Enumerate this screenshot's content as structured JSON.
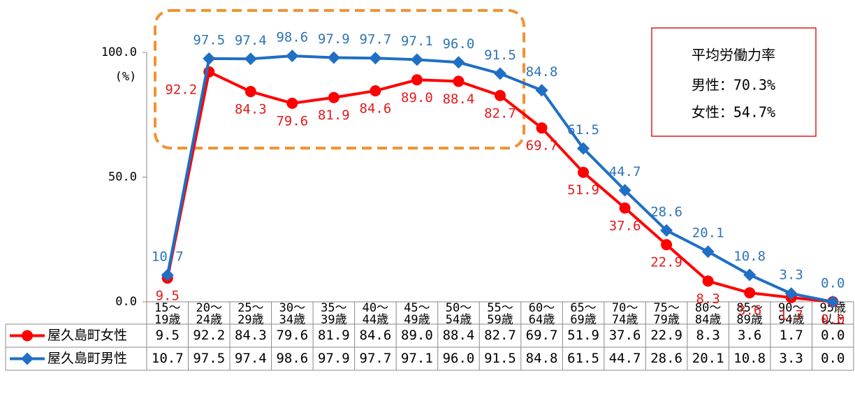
{
  "chart_data": {
    "type": "line",
    "categories": [
      [
        "15～",
        "19歳"
      ],
      [
        "20～",
        "24歳"
      ],
      [
        "25～",
        "29歳"
      ],
      [
        "30～",
        "34歳"
      ],
      [
        "35～",
        "39歳"
      ],
      [
        "40～",
        "44歳"
      ],
      [
        "45～",
        "49歳"
      ],
      [
        "50～",
        "54歳"
      ],
      [
        "55～",
        "59歳"
      ],
      [
        "60～",
        "64歳"
      ],
      [
        "65～",
        "69歳"
      ],
      [
        "70～",
        "74歳"
      ],
      [
        "75～",
        "79歳"
      ],
      [
        "80～",
        "84歳"
      ],
      [
        "85～",
        "89歳"
      ],
      [
        "90～",
        "94歳"
      ],
      [
        "95歳",
        "以上"
      ]
    ],
    "series": [
      {
        "name": "屋久島町女性",
        "color": "#ff0000",
        "label_color": "#e31a1c",
        "marker": "circle",
        "values": [
          9.5,
          92.2,
          84.3,
          79.6,
          81.9,
          84.6,
          89.0,
          88.4,
          82.7,
          69.7,
          51.9,
          37.6,
          22.9,
          8.3,
          3.6,
          1.7,
          0
        ],
        "value_labels": [
          "9.5",
          "92.2",
          "84.3",
          "79.6",
          "81.9",
          "84.6",
          "89.0",
          "88.4",
          "82.7",
          "69.7",
          "51.9",
          "37.6",
          "22.9",
          "8.3",
          "3.6",
          "1.7",
          "0.0"
        ]
      },
      {
        "name": "屋久島町男性",
        "color": "#1f6fc5",
        "label_color": "#2e75b6",
        "marker": "diamond",
        "values": [
          10.7,
          97.5,
          97.4,
          98.6,
          97.9,
          97.7,
          97.1,
          96.0,
          91.5,
          84.8,
          61.5,
          44.7,
          28.6,
          20.1,
          10.8,
          3.3,
          0
        ],
        "value_labels": [
          "10.7",
          "97.5",
          "97.4",
          "98.6",
          "97.9",
          "97.7",
          "97.1",
          "96.0",
          "91.5",
          "84.8",
          "61.5",
          "44.7",
          "28.6",
          "20.1",
          "10.8",
          "3.3",
          "0.0"
        ]
      }
    ],
    "ylim": [
      0,
      120
    ],
    "yticks": [
      {
        "value": 0,
        "label": "0.0"
      },
      {
        "value": 50,
        "label": "50.0"
      },
      {
        "value": 100,
        "label": "100.0"
      }
    ],
    "y_unit": "(%)",
    "annotation": {
      "title": "平均労働力率",
      "lines": [
        "男性：70.3%",
        "女性：54.7%"
      ]
    }
  }
}
